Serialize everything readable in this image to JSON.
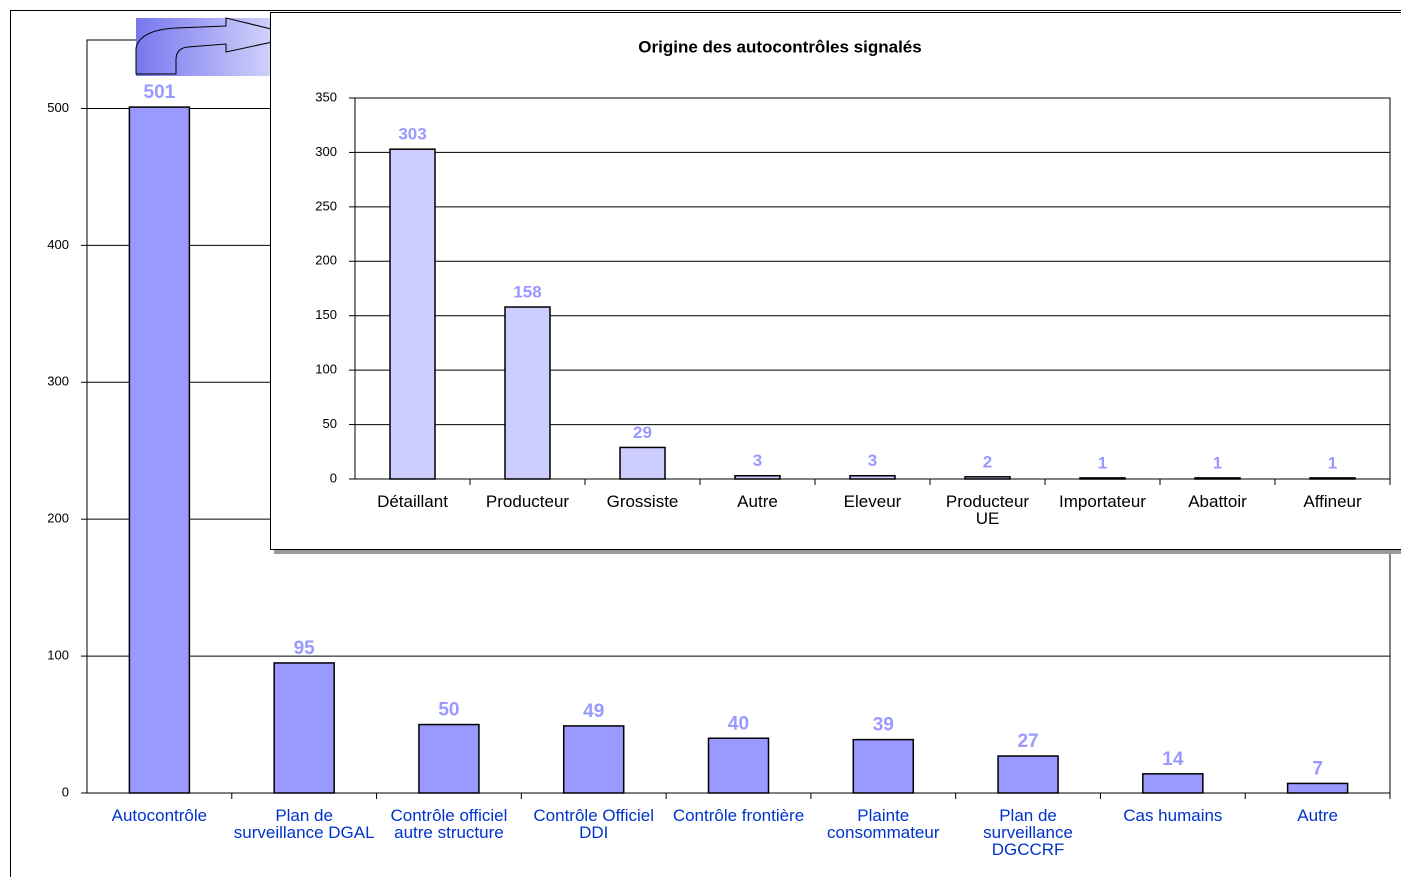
{
  "chart_data": [
    {
      "type": "bar",
      "categories": [
        "Autocontrôle",
        "Plan de surveillance DGAL",
        "Contrôle officiel autre structure",
        "Contrôle Officiel DDI",
        "Contrôle frontière",
        "Plainte consommateur",
        "Plan de surveillance DGCCRF",
        "Cas humains",
        "Autre"
      ],
      "values": [
        501,
        95,
        50,
        49,
        40,
        39,
        27,
        14,
        7
      ],
      "color": "#9999ff",
      "label_color": "#9999ff",
      "category_color": "#0033cc",
      "ylim": [
        0,
        550
      ],
      "yticks": [
        0,
        100,
        200,
        300,
        400,
        500
      ],
      "grid": true
    },
    {
      "type": "bar",
      "title": "Origine des autocontrôles signalés",
      "categories": [
        "Détaillant",
        "Producteur",
        "Grossiste",
        "Autre",
        "Eleveur",
        "Producteur UE",
        "Importateur",
        "Abattoir",
        "Affineur"
      ],
      "values": [
        303,
        158,
        29,
        3,
        3,
        2,
        1,
        1,
        1
      ],
      "color": "#ccccff",
      "label_color": "#9999ff",
      "category_color": "#000000",
      "ylim": [
        0,
        350
      ],
      "yticks": [
        0,
        50,
        100,
        150,
        200,
        250,
        300,
        350
      ],
      "grid": true
    }
  ]
}
